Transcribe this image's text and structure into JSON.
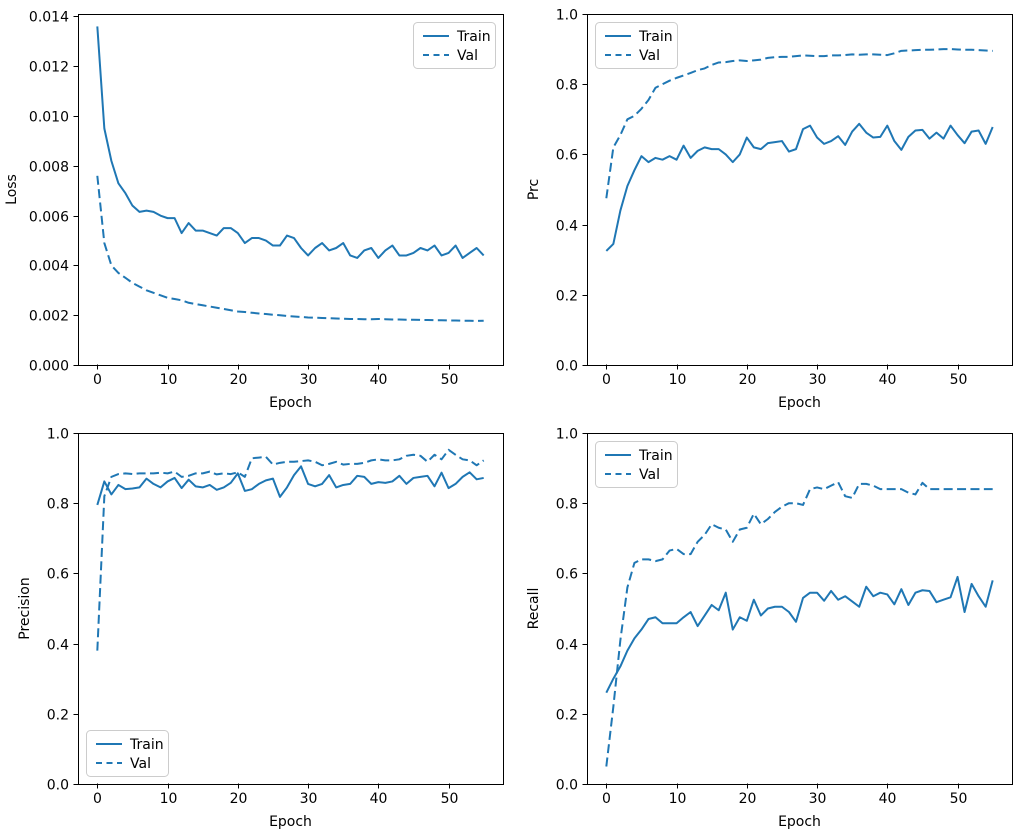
{
  "figure": {
    "background": "#ffffff",
    "line_color": "#1f77b4",
    "axis_color": "#000000",
    "legend_border": "#cccccc",
    "legend_fill": "#ffffff"
  },
  "chart_data": [
    {
      "id": "loss",
      "type": "line",
      "title": "",
      "xlabel": "Epoch",
      "ylabel": "Loss",
      "xlim": [
        -2.75,
        57.75
      ],
      "ylim": [
        0,
        0.0141
      ],
      "xticks": [
        0,
        10,
        20,
        30,
        40,
        50
      ],
      "yticks": [
        0,
        0.002,
        0.004,
        0.006,
        0.008,
        0.01,
        0.012,
        0.014
      ],
      "ytick_labels": [
        "0.000",
        "0.002",
        "0.004",
        "0.006",
        "0.008",
        "0.010",
        "0.012",
        "0.014"
      ],
      "legend": {
        "loc": "upper right",
        "entries": [
          {
            "label": "Train",
            "style": "solid"
          },
          {
            "label": "Val",
            "style": "dashed"
          }
        ]
      },
      "series": [
        {
          "name": "Train",
          "style": "solid",
          "values": [
            0.0136,
            0.0095,
            0.0082,
            0.0073,
            0.0069,
            0.0064,
            0.00615,
            0.0062,
            0.00615,
            0.006,
            0.0059,
            0.0059,
            0.0053,
            0.0057,
            0.0054,
            0.0054,
            0.0053,
            0.0052,
            0.0055,
            0.0055,
            0.0053,
            0.0049,
            0.0051,
            0.0051,
            0.005,
            0.0048,
            0.0048,
            0.0052,
            0.0051,
            0.0047,
            0.0044,
            0.0047,
            0.0049,
            0.0046,
            0.0047,
            0.0049,
            0.0044,
            0.0043,
            0.0046,
            0.0047,
            0.0043,
            0.0046,
            0.0048,
            0.0044,
            0.0044,
            0.0045,
            0.0047,
            0.0046,
            0.0048,
            0.0044,
            0.0045,
            0.0048,
            0.0043,
            0.0045,
            0.0047,
            0.0044
          ]
        },
        {
          "name": "Val",
          "style": "dashed",
          "values": [
            0.0076,
            0.0049,
            0.004,
            0.0037,
            0.0035,
            0.0033,
            0.00315,
            0.003,
            0.0029,
            0.0028,
            0.0027,
            0.00265,
            0.0026,
            0.0025,
            0.00245,
            0.0024,
            0.00235,
            0.0023,
            0.00225,
            0.0022,
            0.00215,
            0.00213,
            0.0021,
            0.00207,
            0.00205,
            0.00202,
            0.002,
            0.00197,
            0.00195,
            0.00193,
            0.00191,
            0.0019,
            0.00189,
            0.00188,
            0.00187,
            0.00186,
            0.00185,
            0.00185,
            0.00184,
            0.00184,
            0.00185,
            0.00184,
            0.00183,
            0.00183,
            0.00182,
            0.00182,
            0.00181,
            0.00181,
            0.0018,
            0.0018,
            0.00179,
            0.00179,
            0.00178,
            0.00178,
            0.00177,
            0.00178
          ]
        }
      ]
    },
    {
      "id": "prc",
      "type": "line",
      "title": "",
      "xlabel": "Epoch",
      "ylabel": "Prc",
      "xlim": [
        -2.75,
        57.75
      ],
      "ylim": [
        0,
        1
      ],
      "xticks": [
        0,
        10,
        20,
        30,
        40,
        50
      ],
      "yticks": [
        0,
        0.2,
        0.4,
        0.6,
        0.8,
        1
      ],
      "ytick_labels": [
        "0.0",
        "0.2",
        "0.4",
        "0.6",
        "0.8",
        "1.0"
      ],
      "legend": {
        "loc": "upper left",
        "entries": [
          {
            "label": "Train",
            "style": "solid"
          },
          {
            "label": "Val",
            "style": "dashed"
          }
        ]
      },
      "series": [
        {
          "name": "Train",
          "style": "solid",
          "values": [
            0.325,
            0.345,
            0.44,
            0.51,
            0.555,
            0.595,
            0.578,
            0.59,
            0.585,
            0.595,
            0.585,
            0.625,
            0.59,
            0.61,
            0.62,
            0.615,
            0.615,
            0.6,
            0.578,
            0.6,
            0.648,
            0.62,
            0.615,
            0.632,
            0.635,
            0.638,
            0.608,
            0.615,
            0.672,
            0.682,
            0.648,
            0.63,
            0.638,
            0.652,
            0.627,
            0.665,
            0.687,
            0.662,
            0.648,
            0.65,
            0.682,
            0.638,
            0.613,
            0.65,
            0.668,
            0.67,
            0.645,
            0.662,
            0.645,
            0.682,
            0.655,
            0.632,
            0.665,
            0.668,
            0.63,
            0.678
          ]
        },
        {
          "name": "Val",
          "style": "dashed",
          "values": [
            0.475,
            0.62,
            0.655,
            0.7,
            0.71,
            0.73,
            0.755,
            0.79,
            0.8,
            0.81,
            0.818,
            0.825,
            0.832,
            0.84,
            0.845,
            0.855,
            0.862,
            0.863,
            0.866,
            0.868,
            0.866,
            0.868,
            0.87,
            0.875,
            0.877,
            0.878,
            0.878,
            0.88,
            0.882,
            0.881,
            0.88,
            0.88,
            0.882,
            0.882,
            0.883,
            0.885,
            0.884,
            0.885,
            0.885,
            0.884,
            0.883,
            0.888,
            0.895,
            0.896,
            0.897,
            0.898,
            0.898,
            0.899,
            0.9,
            0.9,
            0.899,
            0.898,
            0.898,
            0.897,
            0.896,
            0.895
          ]
        }
      ]
    },
    {
      "id": "precision",
      "type": "line",
      "title": "",
      "xlabel": "Epoch",
      "ylabel": "Precision",
      "xlim": [
        -2.75,
        57.75
      ],
      "ylim": [
        0,
        1
      ],
      "xticks": [
        0,
        10,
        20,
        30,
        40,
        50
      ],
      "yticks": [
        0,
        0.2,
        0.4,
        0.6,
        0.8,
        1
      ],
      "ytick_labels": [
        "0.0",
        "0.2",
        "0.4",
        "0.6",
        "0.8",
        "1.0"
      ],
      "legend": {
        "loc": "lower left",
        "entries": [
          {
            "label": "Train",
            "style": "solid"
          },
          {
            "label": "Val",
            "style": "dashed"
          }
        ]
      },
      "series": [
        {
          "name": "Train",
          "style": "solid",
          "values": [
            0.795,
            0.862,
            0.825,
            0.852,
            0.84,
            0.842,
            0.845,
            0.87,
            0.855,
            0.845,
            0.862,
            0.872,
            0.843,
            0.867,
            0.848,
            0.845,
            0.852,
            0.838,
            0.845,
            0.858,
            0.885,
            0.835,
            0.84,
            0.855,
            0.865,
            0.87,
            0.818,
            0.845,
            0.88,
            0.905,
            0.855,
            0.848,
            0.855,
            0.88,
            0.845,
            0.852,
            0.855,
            0.878,
            0.875,
            0.855,
            0.86,
            0.858,
            0.862,
            0.878,
            0.855,
            0.872,
            0.875,
            0.878,
            0.848,
            0.887,
            0.843,
            0.855,
            0.875,
            0.888,
            0.868,
            0.872
          ]
        },
        {
          "name": "Val",
          "style": "dashed",
          "values": [
            0.38,
            0.82,
            0.875,
            0.883,
            0.885,
            0.883,
            0.885,
            0.885,
            0.885,
            0.887,
            0.885,
            0.89,
            0.875,
            0.878,
            0.885,
            0.885,
            0.89,
            0.882,
            0.885,
            0.883,
            0.888,
            0.875,
            0.928,
            0.93,
            0.932,
            0.91,
            0.915,
            0.918,
            0.918,
            0.92,
            0.922,
            0.918,
            0.908,
            0.912,
            0.918,
            0.91,
            0.912,
            0.912,
            0.915,
            0.922,
            0.925,
            0.922,
            0.922,
            0.925,
            0.935,
            0.938,
            0.935,
            0.918,
            0.938,
            0.925,
            0.952,
            0.938,
            0.925,
            0.922,
            0.908,
            0.922
          ]
        }
      ]
    },
    {
      "id": "recall",
      "type": "line",
      "title": "",
      "xlabel": "Epoch",
      "ylabel": "Recall",
      "xlim": [
        -2.75,
        57.75
      ],
      "ylim": [
        0,
        1
      ],
      "xticks": [
        0,
        10,
        20,
        30,
        40,
        50
      ],
      "yticks": [
        0,
        0.2,
        0.4,
        0.6,
        0.8,
        1
      ],
      "ytick_labels": [
        "0.0",
        "0.2",
        "0.4",
        "0.6",
        "0.8",
        "1.0"
      ],
      "legend": {
        "loc": "upper left",
        "entries": [
          {
            "label": "Train",
            "style": "solid"
          },
          {
            "label": "Val",
            "style": "dashed"
          }
        ]
      },
      "series": [
        {
          "name": "Train",
          "style": "solid",
          "values": [
            0.26,
            0.3,
            0.335,
            0.38,
            0.415,
            0.44,
            0.47,
            0.475,
            0.458,
            0.458,
            0.458,
            0.475,
            0.49,
            0.45,
            0.48,
            0.51,
            0.495,
            0.545,
            0.44,
            0.475,
            0.465,
            0.525,
            0.48,
            0.5,
            0.505,
            0.505,
            0.49,
            0.462,
            0.53,
            0.545,
            0.545,
            0.522,
            0.55,
            0.525,
            0.535,
            0.52,
            0.505,
            0.562,
            0.535,
            0.545,
            0.54,
            0.512,
            0.555,
            0.51,
            0.545,
            0.552,
            0.55,
            0.518,
            0.525,
            0.532,
            0.59,
            0.49,
            0.57,
            0.535,
            0.505,
            0.58
          ]
        },
        {
          "name": "Val",
          "style": "dashed",
          "values": [
            0.05,
            0.22,
            0.41,
            0.56,
            0.63,
            0.64,
            0.64,
            0.635,
            0.64,
            0.665,
            0.67,
            0.655,
            0.655,
            0.69,
            0.71,
            0.74,
            0.73,
            0.725,
            0.69,
            0.725,
            0.73,
            0.77,
            0.74,
            0.755,
            0.775,
            0.79,
            0.8,
            0.8,
            0.795,
            0.84,
            0.845,
            0.84,
            0.85,
            0.86,
            0.82,
            0.815,
            0.855,
            0.855,
            0.85,
            0.84,
            0.84,
            0.84,
            0.84,
            0.83,
            0.825,
            0.858,
            0.84,
            0.84,
            0.84,
            0.84,
            0.84,
            0.84,
            0.84,
            0.84,
            0.84,
            0.84
          ]
        }
      ]
    }
  ]
}
